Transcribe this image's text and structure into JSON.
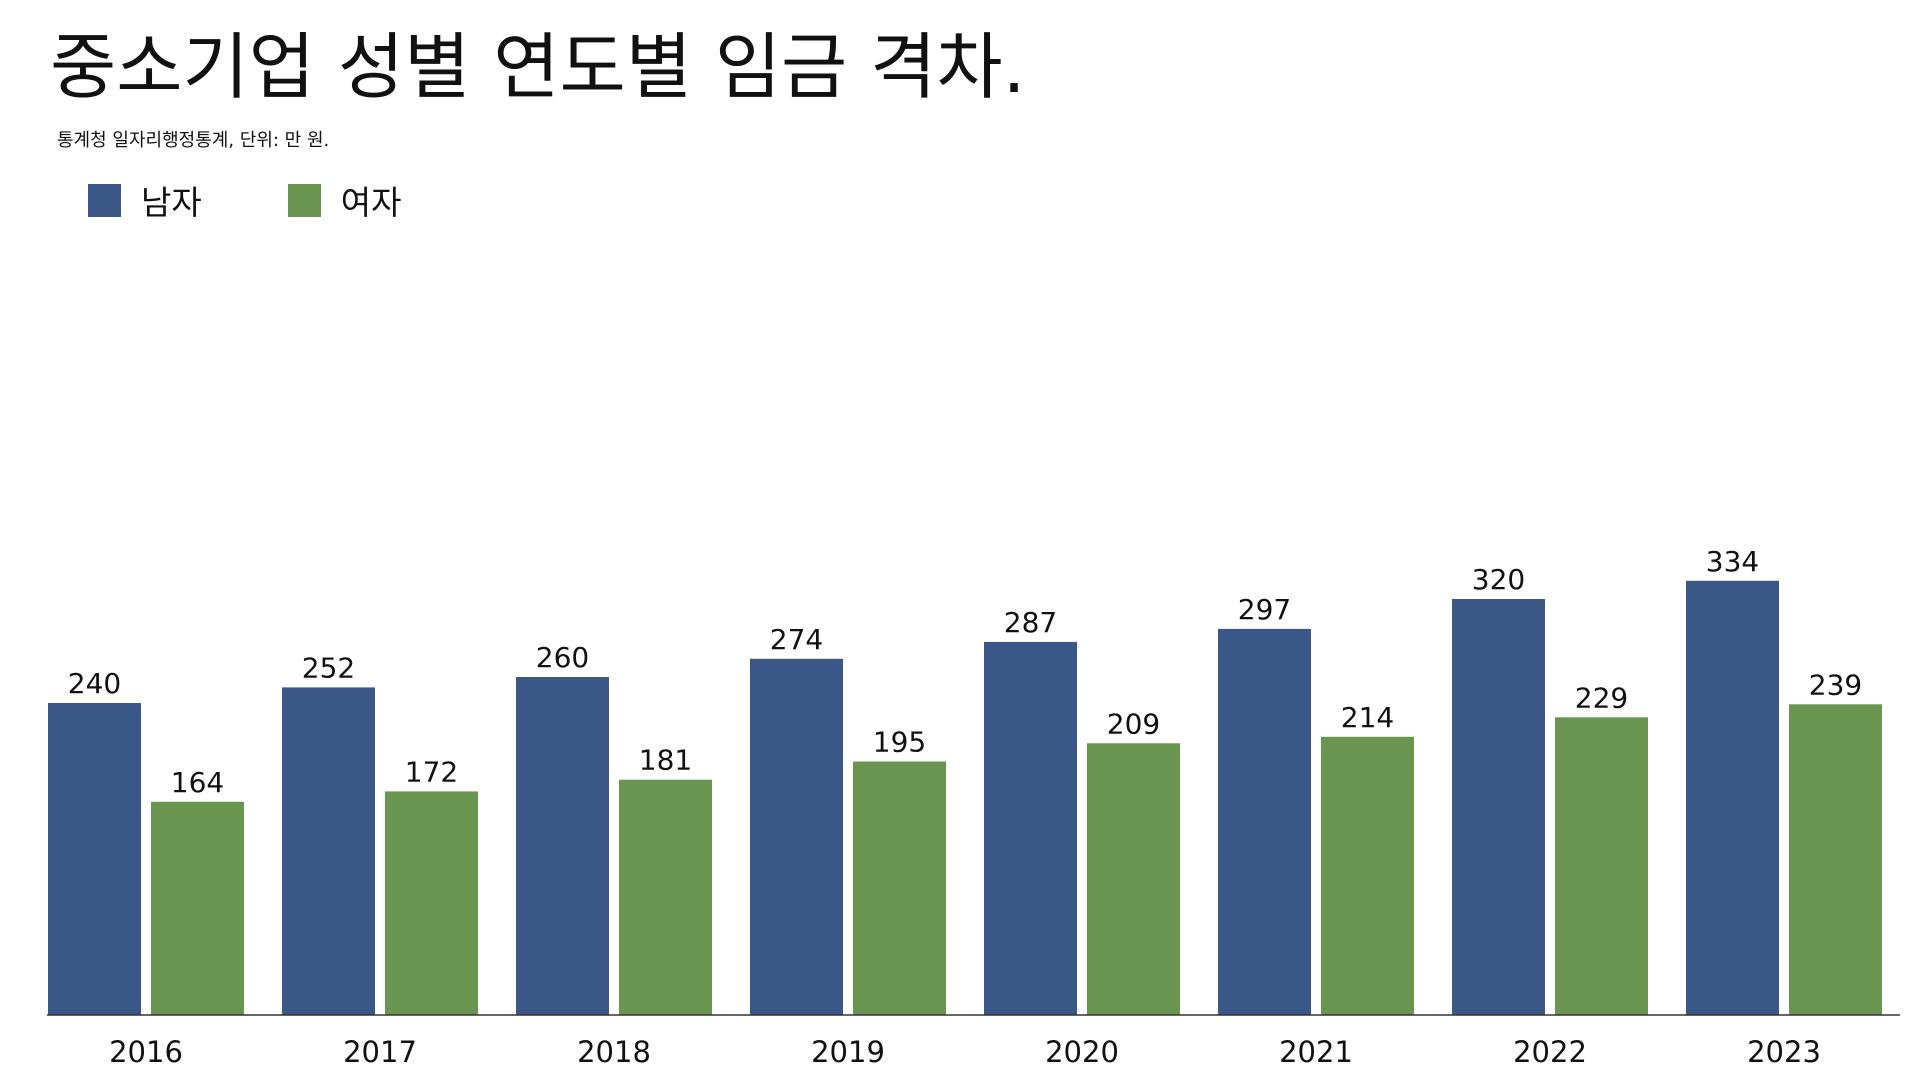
{
  "title": "중소기업 성별 연도별 임금 격차.",
  "subtitle": "통계청 일자리행정통계, 단위: 만 원.",
  "colors": {
    "male": "#3a5787",
    "female": "#6a9550",
    "axis": "#333333"
  },
  "chart_data": {
    "type": "bar",
    "title": "중소기업 성별 연도별 임금 격차.",
    "subtitle": "통계청 일자리행정통계, 단위: 만 원.",
    "xlabel": "",
    "ylabel": "",
    "categories": [
      "2016",
      "2017",
      "2018",
      "2019",
      "2020",
      "2021",
      "2022",
      "2023"
    ],
    "series": [
      {
        "name": "남자",
        "values": [
          240,
          252,
          260,
          274,
          287,
          297,
          320,
          334
        ]
      },
      {
        "name": "여자",
        "values": [
          164,
          172,
          181,
          195,
          209,
          214,
          229,
          239
        ]
      }
    ],
    "ylim": [
      0,
      700
    ],
    "grid": false,
    "legend_placement": "top-left",
    "data_labels": true
  }
}
